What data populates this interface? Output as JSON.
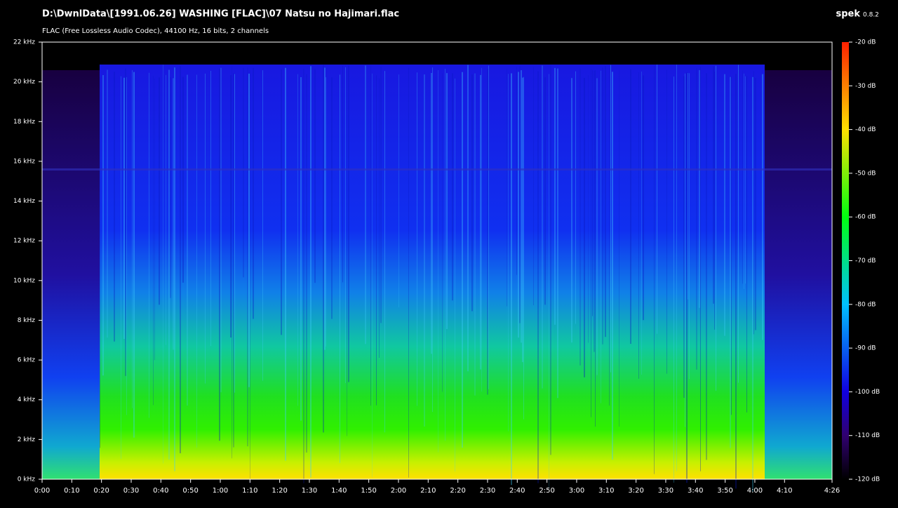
{
  "chart_data": {
    "type": "spectrogram",
    "title": "D:\\DwnlData\\[1991.06.26] WASHING [FLAC]\\07 Natsu no Hajimari.flac",
    "subtitle": "FLAC (Free Lossless Audio Codec), 44100 Hz, 16 bits, 2 channels",
    "app_name": "spek",
    "app_version": "0.8.2",
    "xlim": [
      0,
      266
    ],
    "xticks": [
      {
        "value": 0,
        "label": "0:00"
      },
      {
        "value": 10,
        "label": "0:10"
      },
      {
        "value": 20,
        "label": "0:20"
      },
      {
        "value": 30,
        "label": "0:30"
      },
      {
        "value": 40,
        "label": "0:40"
      },
      {
        "value": 50,
        "label": "0:50"
      },
      {
        "value": 60,
        "label": "1:00"
      },
      {
        "value": 70,
        "label": "1:10"
      },
      {
        "value": 80,
        "label": "1:20"
      },
      {
        "value": 90,
        "label": "1:30"
      },
      {
        "value": 100,
        "label": "1:40"
      },
      {
        "value": 110,
        "label": "1:50"
      },
      {
        "value": 120,
        "label": "2:00"
      },
      {
        "value": 130,
        "label": "2:10"
      },
      {
        "value": 140,
        "label": "2:20"
      },
      {
        "value": 150,
        "label": "2:30"
      },
      {
        "value": 160,
        "label": "2:40"
      },
      {
        "value": 170,
        "label": "2:50"
      },
      {
        "value": 180,
        "label": "3:00"
      },
      {
        "value": 190,
        "label": "3:10"
      },
      {
        "value": 200,
        "label": "3:20"
      },
      {
        "value": 210,
        "label": "3:30"
      },
      {
        "value": 220,
        "label": "3:40"
      },
      {
        "value": 230,
        "label": "3:50"
      },
      {
        "value": 240,
        "label": "4:00"
      },
      {
        "value": 250,
        "label": "4:10"
      },
      {
        "value": 266,
        "label": "4:26"
      }
    ],
    "ylim": [
      0,
      22
    ],
    "yticks": [
      {
        "value": 0,
        "label": "0 kHz"
      },
      {
        "value": 2,
        "label": "2 kHz"
      },
      {
        "value": 4,
        "label": "4 kHz"
      },
      {
        "value": 6,
        "label": "6 kHz"
      },
      {
        "value": 8,
        "label": "8 kHz"
      },
      {
        "value": 10,
        "label": "10 kHz"
      },
      {
        "value": 12,
        "label": "12 kHz"
      },
      {
        "value": 14,
        "label": "14 kHz"
      },
      {
        "value": 16,
        "label": "16 kHz"
      },
      {
        "value": 18,
        "label": "18 kHz"
      },
      {
        "value": 20,
        "label": "20 kHz"
      },
      {
        "value": 22,
        "label": "22 kHz"
      }
    ],
    "clim": [
      -120,
      -20
    ],
    "cticks": [
      {
        "value": -20,
        "label": "-20 dB"
      },
      {
        "value": -30,
        "label": "-30 dB"
      },
      {
        "value": -40,
        "label": "-40 dB"
      },
      {
        "value": -50,
        "label": "-50 dB"
      },
      {
        "value": -60,
        "label": "-60 dB"
      },
      {
        "value": -70,
        "label": "-70 dB"
      },
      {
        "value": -80,
        "label": "-80 dB"
      },
      {
        "value": -90,
        "label": "-90 dB"
      },
      {
        "value": -100,
        "label": "-100 dB"
      },
      {
        "value": -110,
        "label": "-110 dB"
      },
      {
        "value": -120,
        "label": "-120 dB"
      }
    ]
  }
}
